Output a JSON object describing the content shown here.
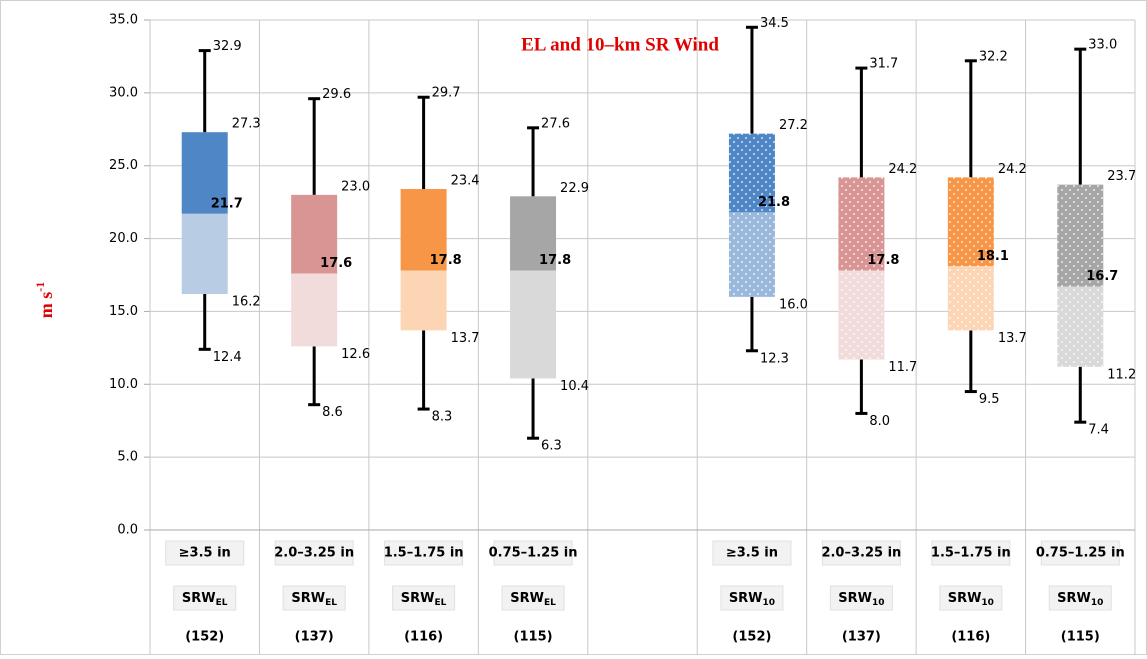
{
  "chart_data": {
    "type": "box",
    "title": "EL and 10–km SR Wind",
    "y_label": {
      "main": "m s",
      "sup": "-1"
    },
    "ylim": [
      0,
      35
    ],
    "yticks": [
      {
        "value": 0,
        "label": "0.0"
      },
      {
        "value": 5,
        "label": "5.0"
      },
      {
        "value": 10,
        "label": "10.0"
      },
      {
        "value": 15,
        "label": "15.0"
      },
      {
        "value": 20,
        "label": "20.0"
      },
      {
        "value": 25,
        "label": "25.0"
      },
      {
        "value": 30,
        "label": "30.0"
      },
      {
        "value": 35,
        "label": "35.0"
      }
    ],
    "grid": true,
    "categories": [
      "≥3.5 in",
      "2.0–3.25 in",
      "1.5–1.75 in",
      "0.75–1.25 in",
      null,
      "≥3.5 in",
      "2.0–3.25 in",
      "1.5–1.75 in",
      "0.75–1.25 in"
    ],
    "variables": [
      {
        "main": "SRW",
        "sub": "EL"
      },
      {
        "main": "SRW",
        "sub": "EL"
      },
      {
        "main": "SRW",
        "sub": "EL"
      },
      {
        "main": "SRW",
        "sub": "EL"
      },
      null,
      {
        "main": "SRW",
        "sub": "10"
      },
      {
        "main": "SRW",
        "sub": "10"
      },
      {
        "main": "SRW",
        "sub": "10"
      },
      {
        "main": "SRW",
        "sub": "10"
      }
    ],
    "counts": [
      "(152)",
      "(137)",
      "(116)",
      "(115)",
      null,
      "(152)",
      "(137)",
      "(116)",
      "(115)"
    ],
    "boxes": [
      {
        "whislo": 12.4,
        "q1": 16.2,
        "med": 21.7,
        "q3": 27.3,
        "whishi": 32.9,
        "value_labels": [
          "12.4",
          "16.2",
          "21.7",
          "27.3",
          "32.9"
        ],
        "upper_color": "#4f86c6",
        "lower_color": "#b8cce4",
        "dotted": false
      },
      {
        "whislo": 8.6,
        "q1": 12.6,
        "med": 17.6,
        "q3": 23.0,
        "whishi": 29.6,
        "value_labels": [
          "8.6",
          "12.6",
          "17.6",
          "23.0",
          "29.6"
        ],
        "upper_color": "#d99594",
        "lower_color": "#f2dcdb",
        "dotted": false
      },
      {
        "whislo": 8.3,
        "q1": 13.7,
        "med": 17.8,
        "q3": 23.4,
        "whishi": 29.7,
        "value_labels": [
          "8.3",
          "13.7",
          "17.8",
          "23.4",
          "29.7"
        ],
        "upper_color": "#f79646",
        "lower_color": "#fcd5b4",
        "dotted": false
      },
      {
        "whislo": 6.3,
        "q1": 10.4,
        "med": 17.8,
        "q3": 22.9,
        "whishi": 27.6,
        "value_labels": [
          "6.3",
          "10.4",
          "17.8",
          "22.9",
          "27.6"
        ],
        "upper_color": "#a6a6a6",
        "lower_color": "#d9d9d9",
        "dotted": false
      },
      null,
      {
        "whislo": 12.3,
        "q1": 16.0,
        "med": 21.8,
        "q3": 27.2,
        "whishi": 34.5,
        "value_labels": [
          "12.3",
          "16.0",
          "21.8",
          "27.2",
          "34.5"
        ],
        "upper_color": "#4f86c6",
        "lower_color": "#9ab8dc",
        "dotted": true
      },
      {
        "whislo": 8.0,
        "q1": 11.7,
        "med": 17.8,
        "q3": 24.2,
        "whishi": 31.7,
        "value_labels": [
          "8.0",
          "11.7",
          "17.8",
          "24.2",
          "31.7"
        ],
        "upper_color": "#d99594",
        "lower_color": "#f2dcdb",
        "dotted": true
      },
      {
        "whislo": 9.5,
        "q1": 13.7,
        "med": 18.1,
        "q3": 24.2,
        "whishi": 32.2,
        "value_labels": [
          "9.5",
          "13.7",
          "18.1",
          "24.2",
          "32.2"
        ],
        "upper_color": "#f79646",
        "lower_color": "#fcd5b4",
        "dotted": true
      },
      {
        "whislo": 7.4,
        "q1": 11.2,
        "med": 16.7,
        "q3": 23.7,
        "whishi": 33.0,
        "value_labels": [
          "7.4",
          "11.2",
          "16.7",
          "23.7",
          "33.0"
        ],
        "upper_color": "#a6a6a6",
        "lower_color": "#d9d9d9",
        "dotted": true
      }
    ]
  }
}
